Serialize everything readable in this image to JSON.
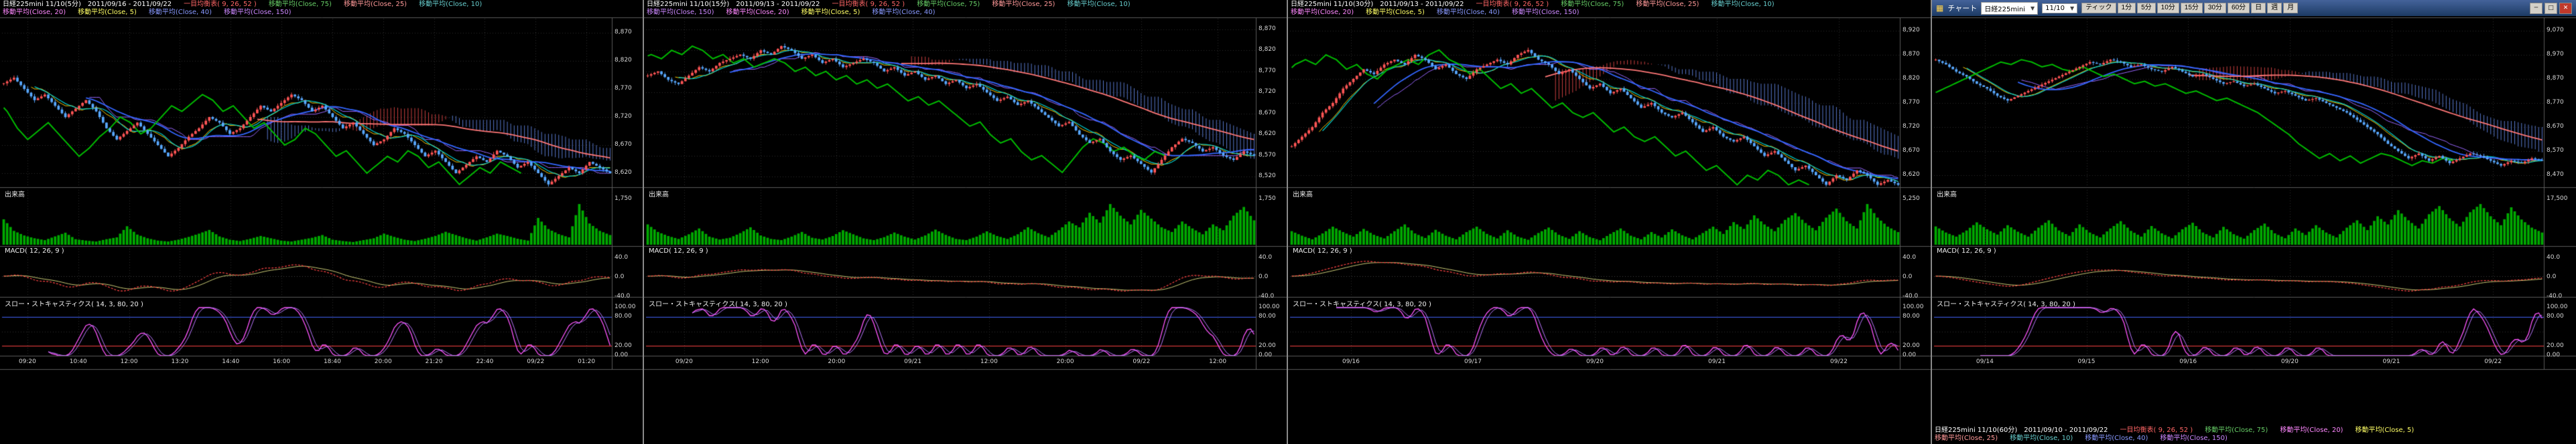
{
  "app": {
    "background": "#000000",
    "panel_border": "#8a8a8a",
    "candle_up_color": "#ff5555",
    "candle_down_color": "#58a8ff",
    "cloud_bull_color": "rgba(255,80,80,0.8)",
    "cloud_bear_color": "rgba(110,150,255,0.8)",
    "volume_color": "#00aa00",
    "lagging_span_color": "#00bb00"
  },
  "chart_data": {
    "type": "candlestick-multi",
    "panels": [
      {
        "id": "nikkei225mini-5min",
        "title": "日経225mini 11/10(5分)　2011/09/16 - 2011/09/22",
        "header_position": "top",
        "indicators_row1": [
          {
            "label": "一目均衡表( 9, 26, 52 )",
            "color": "#ff6666"
          },
          {
            "label": "移動平均(Close, 75)",
            "color": "#66cc66"
          },
          {
            "label": "移動平均(Close, 25)",
            "color": "#ff9999"
          },
          {
            "label": "移動平均(Close, 10)",
            "color": "#66cccc"
          }
        ],
        "indicators_row2": [
          {
            "label": "移動平均(Close, 20)",
            "color": "#ff88ff"
          },
          {
            "label": "移動平均(Close, 5)",
            "color": "#ffff66"
          },
          {
            "label": "移動平均(Close, 40)",
            "color": "#8899ff"
          },
          {
            "label": "移動平均(Close, 150)",
            "color": "#cc88ff"
          }
        ],
        "section_labels": {
          "volume": "出来高",
          "macd": "MACD( 12, 26, 9 )",
          "stoch": "スロー・ストキャスティクス( 14, 3, 80, 20 )"
        },
        "y_ticks": [
          "8,870",
          "8,820",
          "8,770",
          "8,720",
          "8,670",
          "8,620"
        ],
        "ymin": 8595,
        "ymax": 8895,
        "volume_tick": "1,750",
        "macd_ticks": [
          "40.0",
          "0.0",
          "-40.0"
        ],
        "stoch_ticks": [
          "100.00",
          "80.00",
          "20.00",
          "0.00"
        ],
        "x_labels": [
          "09:20",
          "10:40",
          "12:00",
          "13:20",
          "14:40",
          "16:00",
          "18:40",
          "20:00",
          "21:20",
          "22:40",
          "09/22",
          "01:20"
        ],
        "prices": [
          8780,
          8790,
          8770,
          8750,
          8760,
          8740,
          8720,
          8735,
          8750,
          8730,
          8700,
          8680,
          8695,
          8710,
          8690,
          8670,
          8650,
          8665,
          8685,
          8700,
          8720,
          8710,
          8690,
          8700,
          8720,
          8740,
          8730,
          8745,
          8760,
          8750,
          8730,
          8740,
          8720,
          8700,
          8710,
          8690,
          8670,
          8680,
          8700,
          8690,
          8670,
          8650,
          8660,
          8640,
          8620,
          8635,
          8650,
          8640,
          8660,
          8650,
          8630,
          8640,
          8620,
          8600,
          8615,
          8630,
          8620,
          8640,
          8630,
          8620
        ],
        "volume": [
          55,
          30,
          20,
          14,
          10,
          18,
          26,
          12,
          9,
          7,
          12,
          16,
          40,
          22,
          14,
          9,
          7,
          11,
          17,
          24,
          32,
          18,
          11,
          8,
          13,
          19,
          14,
          9,
          7,
          11,
          15,
          21,
          11,
          8,
          6,
          10,
          14,
          24,
          17,
          11,
          8,
          13,
          19,
          28,
          21,
          14,
          9,
          16,
          24,
          19,
          13,
          9,
          58,
          34,
          23,
          16,
          88,
          46,
          30,
          21
        ]
      },
      {
        "id": "nikkei225mini-15min",
        "title": "日経225mini 11/10(15分)　2011/09/13 - 2011/09/22",
        "header_position": "top",
        "indicators_row1": [
          {
            "label": "一目均衡表( 9, 26, 52 )",
            "color": "#ff6666"
          },
          {
            "label": "移動平均(Close, 75)",
            "color": "#66cc66"
          },
          {
            "label": "移動平均(Close, 25)",
            "color": "#ff9999"
          },
          {
            "label": "移動平均(Close, 10)",
            "color": "#66cccc"
          }
        ],
        "indicators_row2": [
          {
            "label": "移動平均(Close, 150)",
            "color": "#cc88ff"
          },
          {
            "label": "移動平均(Close, 20)",
            "color": "#ff88ff"
          },
          {
            "label": "移動平均(Close, 5)",
            "color": "#ffff66"
          },
          {
            "label": "移動平均(Close, 40)",
            "color": "#8899ff"
          }
        ],
        "section_labels": {
          "volume": "出来高",
          "macd": "MACD( 12, 26, 9 )",
          "stoch": "スロー・ストキャスティクス( 14, 3, 80, 20 )"
        },
        "y_ticks": [
          "8,870",
          "8,820",
          "8,770",
          "8,720",
          "8,670",
          "8,620",
          "8,570",
          "8,520"
        ],
        "ymin": 8495,
        "ymax": 8895,
        "volume_tick": "1,750",
        "macd_ticks": [
          "40.0",
          "0.0",
          "-40.0"
        ],
        "stoch_ticks": [
          "100.00",
          "80.00",
          "20.00",
          "0.00"
        ],
        "x_labels": [
          "09/20",
          "12:00",
          "20:00",
          "09/21",
          "12:00",
          "20:00",
          "09/22",
          "12:00"
        ],
        "prices": [
          8760,
          8770,
          8750,
          8740,
          8760,
          8780,
          8770,
          8790,
          8800,
          8810,
          8800,
          8820,
          8810,
          8830,
          8820,
          8800,
          8810,
          8790,
          8800,
          8780,
          8790,
          8800,
          8790,
          8770,
          8780,
          8760,
          8770,
          8750,
          8760,
          8740,
          8750,
          8730,
          8740,
          8720,
          8700,
          8710,
          8690,
          8700,
          8680,
          8660,
          8640,
          8650,
          8620,
          8600,
          8610,
          8580,
          8560,
          8570,
          8550,
          8530,
          8560,
          8590,
          8610,
          8600,
          8580,
          8590,
          8570,
          8560,
          8580,
          8570
        ],
        "volume": [
          35,
          22,
          15,
          10,
          18,
          28,
          14,
          9,
          12,
          20,
          30,
          16,
          10,
          8,
          14,
          22,
          12,
          9,
          15,
          25,
          18,
          11,
          8,
          13,
          21,
          14,
          9,
          16,
          26,
          17,
          10,
          8,
          14,
          23,
          15,
          10,
          18,
          30,
          20,
          13,
          25,
          40,
          30,
          55,
          38,
          70,
          50,
          35,
          60,
          45,
          30,
          22,
          40,
          28,
          18,
          35,
          25,
          50,
          65,
          42
        ]
      },
      {
        "id": "nikkei225mini-30min",
        "title": "日経225mini 11/10(30分)　2011/09/13 - 2011/09/22",
        "header_position": "top",
        "indicators_row1": [
          {
            "label": "一目均衡表( 9, 26, 52 )",
            "color": "#ff6666"
          },
          {
            "label": "移動平均(Close, 75)",
            "color": "#66cc66"
          },
          {
            "label": "移動平均(Close, 25)",
            "color": "#ff9999"
          },
          {
            "label": "移動平均(Close, 10)",
            "color": "#66cccc"
          }
        ],
        "indicators_row2": [
          {
            "label": "移動平均(Close, 20)",
            "color": "#ff88ff"
          },
          {
            "label": "移動平均(Close, 5)",
            "color": "#ffff66"
          },
          {
            "label": "移動平均(Close, 40)",
            "color": "#8899ff"
          },
          {
            "label": "移動平均(Close, 150)",
            "color": "#cc88ff"
          }
        ],
        "section_labels": {
          "volume": "出来高",
          "macd": "MACD( 12, 26, 9 )",
          "stoch": "スロー・ストキャスティクス( 14, 3, 80, 20 )"
        },
        "y_ticks": [
          "8,920",
          "8,870",
          "8,820",
          "8,770",
          "8,720",
          "8,670",
          "8,620"
        ],
        "ymin": 8595,
        "ymax": 8945,
        "volume_tick": "5,250",
        "macd_ticks": [
          "40.0",
          "0.0",
          "-40.0"
        ],
        "stoch_ticks": [
          "100.00",
          "80.00",
          "20.00",
          "0.00"
        ],
        "x_labels": [
          "09/16",
          "09/17",
          "09/20",
          "09/21",
          "09/22"
        ],
        "prices": [
          8680,
          8700,
          8720,
          8750,
          8770,
          8800,
          8820,
          8840,
          8830,
          8850,
          8860,
          8850,
          8870,
          8860,
          8840,
          8850,
          8830,
          8820,
          8840,
          8850,
          8860,
          8850,
          8870,
          8880,
          8860,
          8850,
          8830,
          8840,
          8820,
          8800,
          8810,
          8790,
          8800,
          8780,
          8760,
          8770,
          8750,
          8740,
          8750,
          8730,
          8710,
          8720,
          8700,
          8690,
          8700,
          8680,
          8660,
          8670,
          8650,
          8630,
          8640,
          8620,
          8600,
          8620,
          8610,
          8630,
          8620,
          8600,
          8610,
          8600
        ],
        "volume": [
          30,
          20,
          12,
          25,
          40,
          28,
          18,
          35,
          22,
          14,
          30,
          45,
          25,
          15,
          33,
          20,
          12,
          28,
          40,
          24,
          14,
          32,
          18,
          11,
          26,
          38,
          22,
          13,
          30,
          17,
          10,
          24,
          36,
          20,
          12,
          28,
          16,
          34,
          21,
          12,
          26,
          40,
          24,
          50,
          35,
          65,
          45,
          30,
          55,
          70,
          48,
          32,
          60,
          80,
          52,
          36,
          90,
          60,
          40,
          28
        ]
      },
      {
        "id": "nikkei225mini-60min",
        "title": "日経225mini 11/10(60分)　2011/09/10 - 2011/09/22",
        "header_position": "bottom",
        "indicators_row1": [
          {
            "label": "一目均衡表( 9, 26, 52 )",
            "color": "#ff6666"
          },
          {
            "label": "移動平均(Close, 75)",
            "color": "#66cc66"
          },
          {
            "label": "移動平均(Close, 20)",
            "color": "#ff88ff"
          },
          {
            "label": "移動平均(Close, 5)",
            "color": "#ffff66"
          }
        ],
        "indicators_row2": [
          {
            "label": "移動平均(Close, 25)",
            "color": "#ff9999"
          },
          {
            "label": "移動平均(Close, 10)",
            "color": "#66cccc"
          },
          {
            "label": "移動平均(Close, 40)",
            "color": "#8899ff"
          },
          {
            "label": "移動平均(Close, 150)",
            "color": "#cc88ff"
          }
        ],
        "section_labels": {
          "volume": "出来高",
          "macd": "MACD( 12, 26, 9 )",
          "stoch": "スロー・ストキャスティクス( 14, 3, 80, 20 )"
        },
        "y_ticks": [
          "9,070",
          "8,970",
          "8,870",
          "8,770",
          "8,670",
          "8,570",
          "8,470"
        ],
        "ymin": 8420,
        "ymax": 9120,
        "volume_tick": "17,500",
        "macd_ticks": [
          "40.0",
          "0.0",
          "-40.0"
        ],
        "stoch_ticks": [
          "100.00",
          "80.00",
          "20.00",
          "0.00"
        ],
        "x_labels": [
          "09/14",
          "09/15",
          "09/16",
          "09/20",
          "09/21",
          "09/22"
        ],
        "prices": [
          8950,
          8930,
          8900,
          8880,
          8850,
          8830,
          8800,
          8780,
          8800,
          8820,
          8840,
          8860,
          8880,
          8900,
          8920,
          8940,
          8930,
          8950,
          8940,
          8920,
          8930,
          8910,
          8900,
          8920,
          8900,
          8880,
          8890,
          8870,
          8850,
          8860,
          8840,
          8850,
          8830,
          8810,
          8820,
          8800,
          8780,
          8790,
          8770,
          8750,
          8730,
          8700,
          8670,
          8640,
          8600,
          8570,
          8540,
          8560,
          8530,
          8550,
          8520,
          8540,
          8560,
          8550,
          8530,
          8510,
          8530,
          8520,
          8540,
          8530
        ],
        "volume": [
          45,
          30,
          20,
          35,
          55,
          38,
          25,
          48,
          32,
          20,
          42,
          60,
          35,
          22,
          50,
          30,
          18,
          40,
          58,
          34,
          20,
          46,
          28,
          16,
          38,
          54,
          30,
          18,
          44,
          26,
          15,
          36,
          52,
          28,
          16,
          40,
          24,
          48,
          30,
          18,
          42,
          60,
          36,
          70,
          50,
          85,
          60,
          40,
          75,
          95,
          65,
          45,
          80,
          100,
          70,
          48,
          92,
          62,
          42,
          30
        ],
        "window": {
          "title": "チャート",
          "symbol": "日経225mini",
          "contract": "11/10",
          "periods": [
            "ティック",
            "1分",
            "5分",
            "10分",
            "15分",
            "30分",
            "60分",
            "日",
            "週",
            "月"
          ],
          "minimize": "─",
          "maximize": "□",
          "close": "✕"
        }
      }
    ]
  }
}
